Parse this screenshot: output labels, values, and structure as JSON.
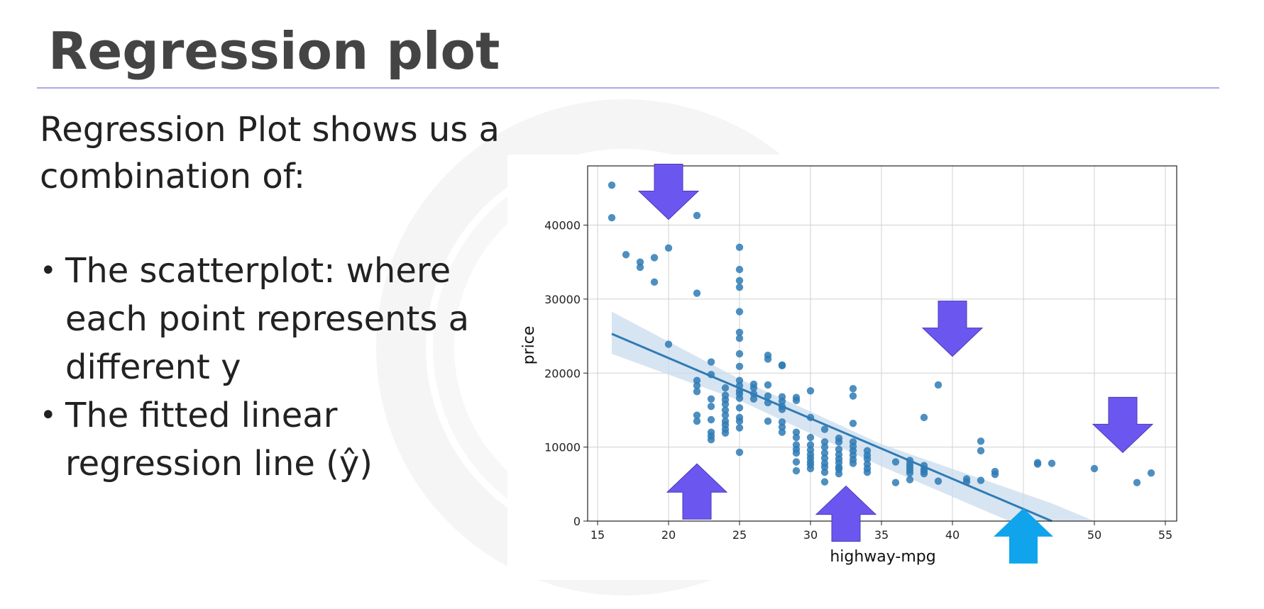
{
  "slide": {
    "title": "Regression plot",
    "intro": "Regression Plot shows us a combination of:",
    "bullets": [
      "The scatterplot: where each point represents a different y",
      "The fitted linear regression line (ŷ)"
    ]
  },
  "colors": {
    "point": "#2f7bb5",
    "line": "#2f7bb5",
    "band": "#c9dcee",
    "arrow": "#6b57f0",
    "arrow_highlight": "#10a4ec",
    "grid": "#d0d0d0"
  },
  "chart_data": {
    "type": "scatter",
    "xlabel": "highway-mpg",
    "ylabel": "price",
    "xlim": [
      14.3,
      55.8
    ],
    "ylim": [
      0,
      48000
    ],
    "xticks": [
      15,
      20,
      25,
      30,
      35,
      40,
      45,
      50,
      55
    ],
    "yticks": [
      0,
      10000,
      20000,
      30000,
      40000
    ],
    "grid": true,
    "regression": {
      "x": [
        16,
        47
      ],
      "y": [
        25300,
        0
      ],
      "ci_upper": [
        [
          16,
          28300
        ],
        [
          25,
          19200
        ],
        [
          35,
          10400
        ],
        [
          47,
          2400
        ],
        [
          50,
          0
        ]
      ],
      "ci_lower": [
        [
          16,
          22600
        ],
        [
          25,
          16300
        ],
        [
          35,
          7400
        ],
        [
          44,
          0
        ]
      ]
    },
    "points": [
      [
        16,
        45400
      ],
      [
        16,
        41000
      ],
      [
        17,
        36000
      ],
      [
        18,
        35000
      ],
      [
        18,
        34300
      ],
      [
        19,
        35600
      ],
      [
        19,
        32300
      ],
      [
        20,
        36900
      ],
      [
        20,
        23900
      ],
      [
        22,
        41300
      ],
      [
        22,
        30800
      ],
      [
        22,
        19000
      ],
      [
        22,
        18300
      ],
      [
        22,
        17500
      ],
      [
        22,
        14300
      ],
      [
        22,
        13500
      ],
      [
        23,
        21500
      ],
      [
        23,
        19800
      ],
      [
        23,
        16500
      ],
      [
        23,
        15500
      ],
      [
        23,
        13700
      ],
      [
        23,
        12000
      ],
      [
        23,
        11500
      ],
      [
        23,
        11000
      ],
      [
        24,
        18000
      ],
      [
        24,
        17000
      ],
      [
        24,
        16400
      ],
      [
        24,
        15800
      ],
      [
        24,
        15000
      ],
      [
        24,
        14300
      ],
      [
        24,
        13500
      ],
      [
        24,
        13000
      ],
      [
        24,
        12400
      ],
      [
        24,
        11900
      ],
      [
        25,
        37000
      ],
      [
        25,
        34000
      ],
      [
        25,
        32500
      ],
      [
        25,
        31600
      ],
      [
        25,
        28300
      ],
      [
        25,
        25500
      ],
      [
        25,
        24700
      ],
      [
        25,
        22600
      ],
      [
        25,
        20900
      ],
      [
        25,
        19000
      ],
      [
        25,
        18300
      ],
      [
        25,
        17600
      ],
      [
        25,
        17200
      ],
      [
        25,
        16600
      ],
      [
        25,
        15300
      ],
      [
        25,
        14000
      ],
      [
        25,
        13500
      ],
      [
        25,
        12600
      ],
      [
        25,
        9300
      ],
      [
        26,
        18500
      ],
      [
        26,
        18000
      ],
      [
        26,
        17200
      ],
      [
        26,
        16500
      ],
      [
        27,
        22400
      ],
      [
        27,
        21900
      ],
      [
        27,
        18400
      ],
      [
        27,
        16900
      ],
      [
        27,
        16000
      ],
      [
        27,
        13500
      ],
      [
        28,
        21100
      ],
      [
        28,
        21000
      ],
      [
        28,
        16800
      ],
      [
        28,
        16200
      ],
      [
        28,
        15500
      ],
      [
        28,
        15100
      ],
      [
        28,
        13400
      ],
      [
        28,
        12700
      ],
      [
        28,
        12000
      ],
      [
        29,
        16700
      ],
      [
        29,
        16300
      ],
      [
        29,
        12000
      ],
      [
        29,
        11300
      ],
      [
        29,
        10300
      ],
      [
        29,
        9700
      ],
      [
        29,
        9200
      ],
      [
        29,
        8000
      ],
      [
        29,
        6800
      ],
      [
        30,
        17600
      ],
      [
        30,
        14000
      ],
      [
        30,
        11300
      ],
      [
        30,
        10300
      ],
      [
        30,
        9600
      ],
      [
        30,
        9000
      ],
      [
        30,
        8500
      ],
      [
        30,
        8000
      ],
      [
        30,
        7600
      ],
      [
        30,
        7100
      ],
      [
        31,
        12400
      ],
      [
        31,
        10700
      ],
      [
        31,
        10000
      ],
      [
        31,
        9200
      ],
      [
        31,
        8500
      ],
      [
        31,
        7800
      ],
      [
        31,
        7300
      ],
      [
        31,
        6600
      ],
      [
        31,
        5300
      ],
      [
        32,
        11200
      ],
      [
        32,
        10700
      ],
      [
        32,
        9700
      ],
      [
        32,
        9000
      ],
      [
        32,
        8400
      ],
      [
        32,
        7900
      ],
      [
        32,
        7300
      ],
      [
        32,
        7000
      ],
      [
        32,
        6400
      ],
      [
        33,
        17900
      ],
      [
        33,
        16900
      ],
      [
        33,
        13200
      ],
      [
        33,
        10700
      ],
      [
        33,
        10100
      ],
      [
        33,
        9500
      ],
      [
        33,
        8900
      ],
      [
        33,
        8300
      ],
      [
        33,
        7800
      ],
      [
        34,
        9500
      ],
      [
        34,
        8900
      ],
      [
        34,
        8400
      ],
      [
        34,
        7700
      ],
      [
        34,
        7100
      ],
      [
        34,
        6600
      ],
      [
        36,
        8000
      ],
      [
        36,
        5200
      ],
      [
        37,
        8200
      ],
      [
        37,
        7700
      ],
      [
        37,
        7300
      ],
      [
        37,
        6900
      ],
      [
        37,
        6500
      ],
      [
        37,
        5600
      ],
      [
        38,
        14000
      ],
      [
        38,
        7500
      ],
      [
        38,
        7000
      ],
      [
        38,
        6700
      ],
      [
        38,
        6400
      ],
      [
        39,
        18400
      ],
      [
        39,
        5400
      ],
      [
        41,
        5700
      ],
      [
        41,
        5300
      ],
      [
        42,
        10800
      ],
      [
        42,
        9500
      ],
      [
        42,
        5500
      ],
      [
        43,
        6700
      ],
      [
        43,
        6300
      ],
      [
        46,
        7900
      ],
      [
        46,
        7700
      ],
      [
        47,
        7800
      ],
      [
        50,
        7100
      ],
      [
        53,
        5200
      ],
      [
        54,
        6500
      ]
    ],
    "arrows": [
      {
        "x": 20,
        "y": 44500,
        "dir": "down",
        "color": "arrow"
      },
      {
        "x": 40,
        "y": 26000,
        "dir": "down",
        "color": "arrow"
      },
      {
        "x": 52,
        "y": 13000,
        "dir": "down",
        "color": "arrow"
      },
      {
        "x": 22,
        "y": 4000,
        "dir": "up",
        "color": "arrow"
      },
      {
        "x": 32.5,
        "y": 1000,
        "dir": "up",
        "color": "arrow"
      },
      {
        "x": 45,
        "y": -2000,
        "dir": "up",
        "color": "arrow_highlight"
      }
    ]
  }
}
